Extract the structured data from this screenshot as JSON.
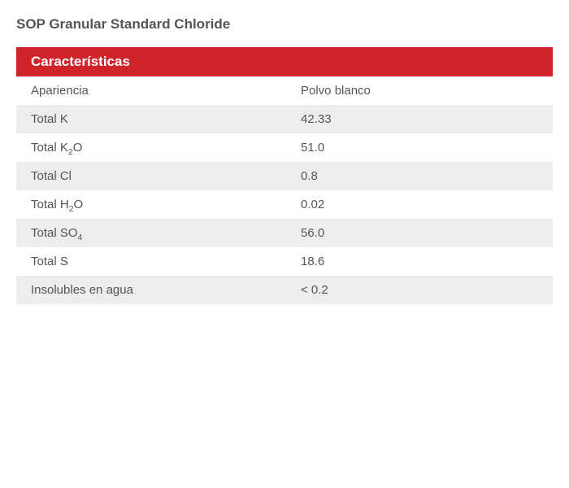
{
  "title": "SOP Granular Standard Chloride",
  "tableHeader": "Características",
  "colors": {
    "headerBg": "#d1232a",
    "headerText": "#ffffff",
    "rowOdd": "#ffffff",
    "rowEven": "#ededed",
    "text": "#555555"
  },
  "rows": [
    {
      "label": "Apariencia",
      "value": "Polvo blanco"
    },
    {
      "label": "Total K",
      "value": "42.33"
    },
    {
      "label": "Total K2O",
      "labelHtml": "Total K<sub>2</sub>O",
      "value": "51.0"
    },
    {
      "label": "Total Cl",
      "value": "0.8"
    },
    {
      "label": "Total H2O",
      "labelHtml": "Total H<sub>2</sub>O",
      "value": "0.02"
    },
    {
      "label": "Total SO4",
      "labelHtml": "Total SO<sub>4</sub>",
      "value": "56.0"
    },
    {
      "label": "Total S",
      "value": "18.6"
    },
    {
      "label": "Insolubles en agua",
      "value": "< 0.2"
    }
  ]
}
